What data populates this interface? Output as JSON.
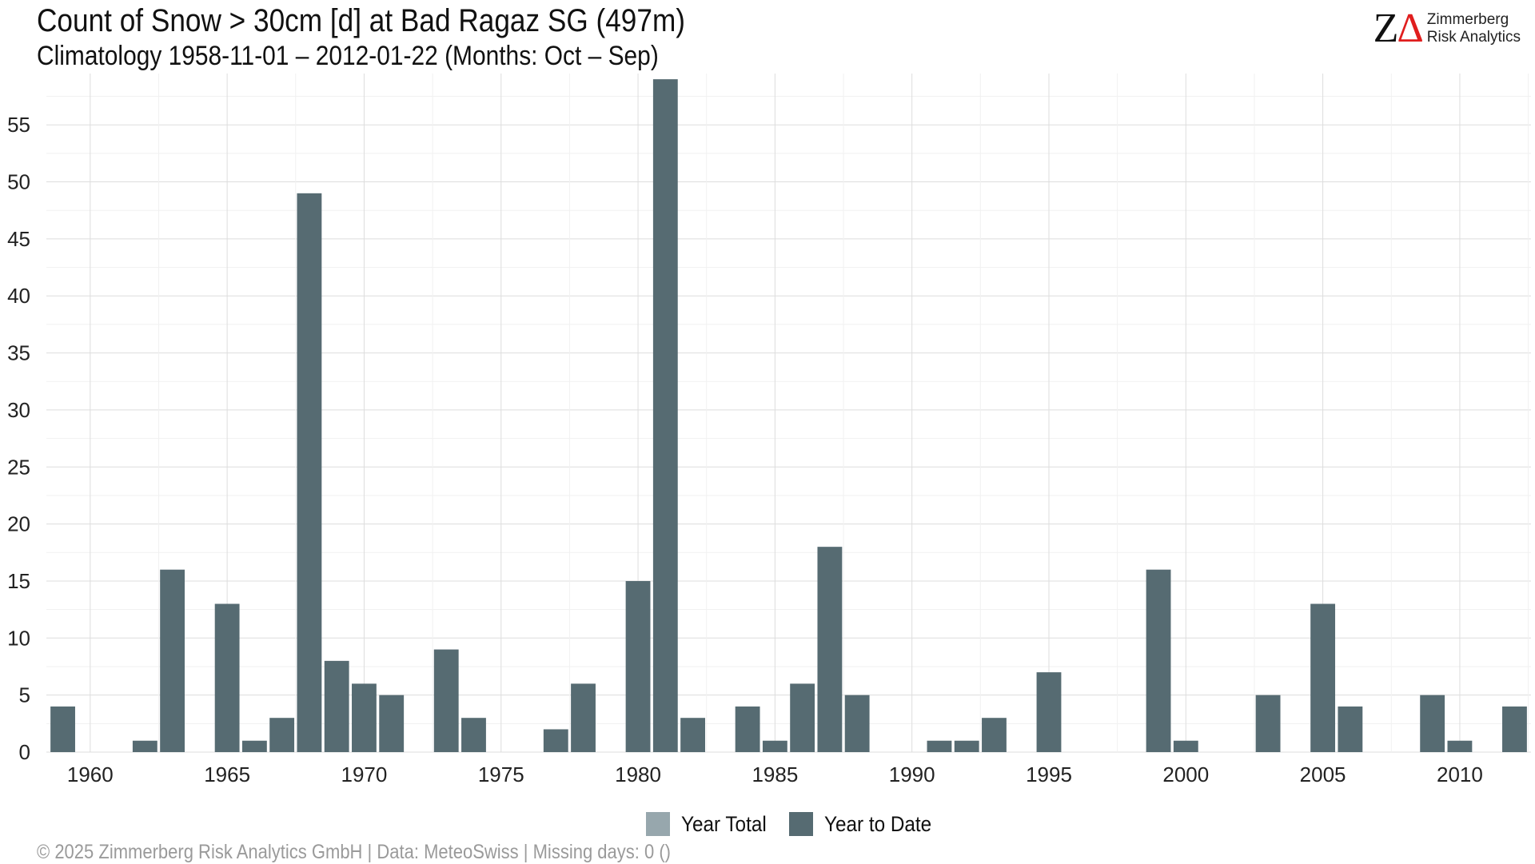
{
  "title": "Count of Snow > 30cm [d] at Bad Ragaz  SG (497m)",
  "subtitle": "Climatology 1958-11-01 – 2012-01-22 (Months: Oct – Sep)",
  "logo": {
    "mark_z": "Z",
    "mark_delta": "Δ",
    "line1": "Zimmerberg",
    "line2": "Risk Analytics"
  },
  "legend": [
    {
      "label": "Year Total",
      "color": "#97a7ad"
    },
    {
      "label": "Year to Date",
      "color": "#566b72"
    }
  ],
  "footer": "©  2025 Zimmerberg Risk Analytics GmbH | Data: MeteoSwiss | Missing days: 0 ()",
  "colors": {
    "bar": "#566b72",
    "grid": "#dddddd",
    "text": "#111111"
  },
  "chart_data": {
    "type": "bar",
    "title": "Count of Snow > 30cm [d] at Bad Ragaz  SG (497m)",
    "xlabel": "",
    "ylabel": "",
    "xlim": [
      1958.4,
      2012.6
    ],
    "ylim": [
      0,
      59.5
    ],
    "x_ticks": [
      1960,
      1965,
      1970,
      1975,
      1980,
      1985,
      1990,
      1995,
      2000,
      2005,
      2010
    ],
    "y_ticks": [
      0,
      5,
      10,
      15,
      20,
      25,
      30,
      35,
      40,
      45,
      50,
      55
    ],
    "grid": true,
    "legend_position": "bottom",
    "series": [
      {
        "name": "Year to Date",
        "x": [
          1959,
          1962,
          1963,
          1965,
          1966,
          1967,
          1968,
          1969,
          1970,
          1971,
          1973,
          1974,
          1977,
          1978,
          1980,
          1981,
          1982,
          1984,
          1985,
          1986,
          1987,
          1988,
          1991,
          1992,
          1993,
          1995,
          1999,
          2000,
          2003,
          2005,
          2006,
          2009,
          2010,
          2012
        ],
        "values": [
          4,
          1,
          16,
          13,
          1,
          3,
          49,
          8,
          6,
          5,
          9,
          3,
          2,
          6,
          15,
          59,
          3,
          4,
          1,
          6,
          18,
          5,
          1,
          1,
          3,
          7,
          16,
          1,
          5,
          13,
          4,
          5,
          1,
          4
        ]
      }
    ]
  }
}
